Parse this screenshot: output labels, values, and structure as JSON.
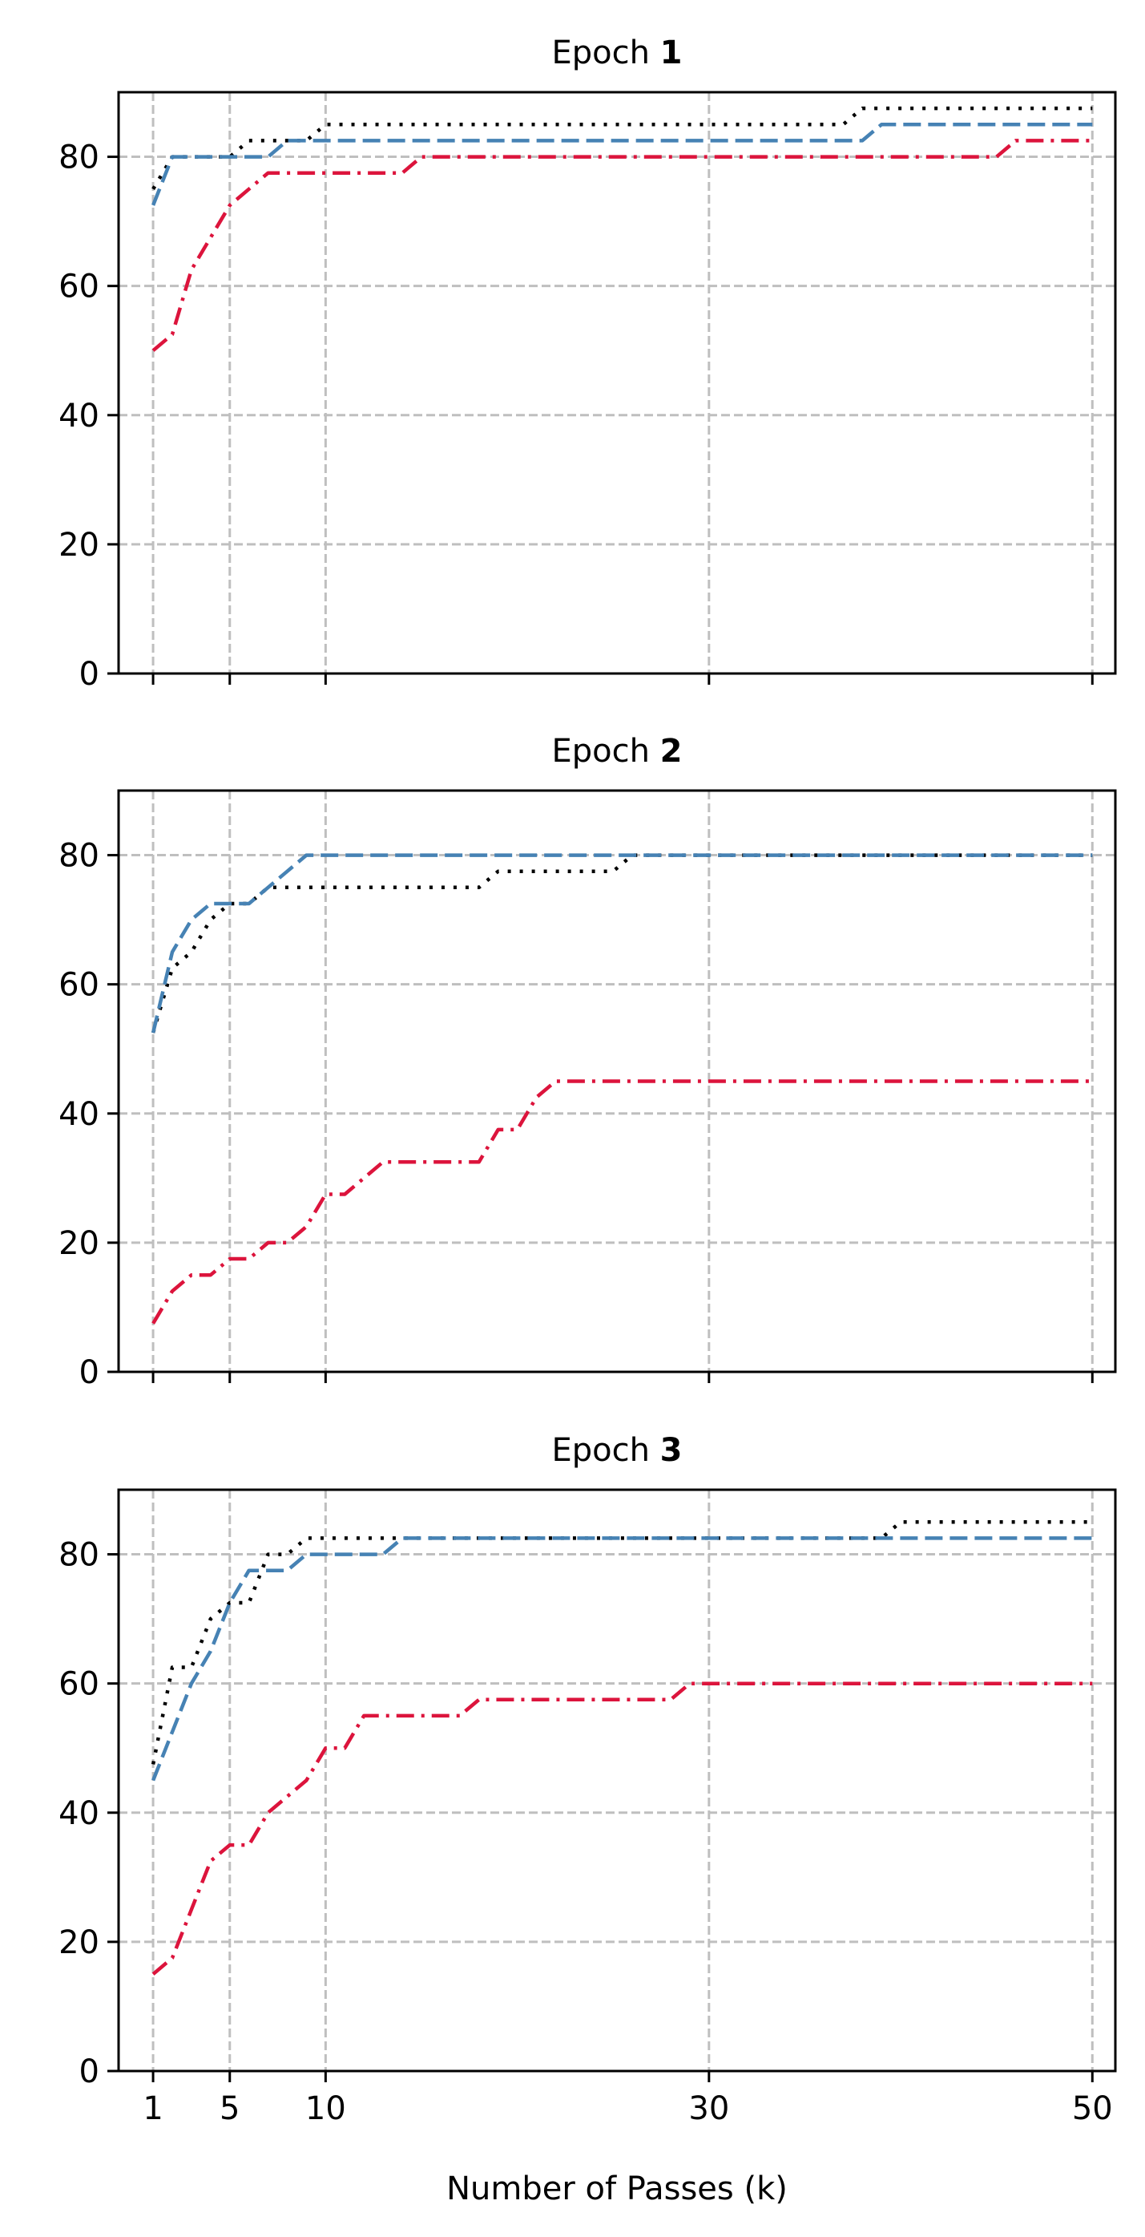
{
  "chart_data": {
    "type": "line",
    "xlabel": "Number of Passes (k)",
    "ylabel": "",
    "xlim": [
      -0.8,
      51.2
    ],
    "ylim": [
      0,
      90
    ],
    "xticks": [
      1,
      5,
      10,
      30,
      50
    ],
    "yticks": [
      0,
      20,
      40,
      60,
      80
    ],
    "grid": true,
    "colors": {
      "dotted": "#000000",
      "dashed": "#4682b4",
      "dashdot": "#dc143c",
      "grid": "#bfbfbf"
    },
    "panels": [
      {
        "title_prefix": "Epoch ",
        "title_number": "1",
        "series": [
          {
            "style": "dotted",
            "x": [
              1,
              2,
              3,
              5,
              6,
              8,
              9,
              10,
              20,
              30,
              36,
              37,
              38,
              50
            ],
            "y": [
              75,
              80,
              80,
              80,
              82.5,
              82.5,
              82.5,
              85,
              85,
              85,
              85,
              85,
              87.5,
              87.5
            ]
          },
          {
            "style": "dashed",
            "x": [
              1,
              2,
              3,
              5,
              6,
              7,
              8,
              9,
              10,
              20,
              30,
              38,
              39,
              50
            ],
            "y": [
              72.5,
              80,
              80,
              80,
              80,
              80,
              82.5,
              82.5,
              82.5,
              82.5,
              82.5,
              82.5,
              85,
              85
            ]
          },
          {
            "style": "dashdot",
            "x": [
              1,
              2,
              3,
              4,
              5,
              6,
              7,
              8,
              9,
              10,
              14,
              15,
              20,
              30,
              45,
              46,
              50
            ],
            "y": [
              50,
              52.5,
              62.5,
              67.5,
              72.5,
              75,
              77.5,
              77.5,
              77.5,
              77.5,
              77.5,
              80,
              80,
              80,
              80,
              82.5,
              82.5
            ]
          }
        ]
      },
      {
        "title_prefix": "Epoch ",
        "title_number": "2",
        "series": [
          {
            "style": "dotted",
            "x": [
              1,
              2,
              3,
              4,
              5,
              6,
              7,
              10,
              18,
              19,
              20,
              25,
              26,
              50
            ],
            "y": [
              52.5,
              62.5,
              65,
              70,
              72.5,
              72.5,
              75,
              75,
              75,
              77.5,
              77.5,
              77.5,
              80,
              80
            ]
          },
          {
            "style": "dashed",
            "x": [
              1,
              2,
              3,
              4,
              5,
              6,
              7,
              8,
              9,
              10,
              20,
              30,
              50
            ],
            "y": [
              52.5,
              65,
              70,
              72.5,
              72.5,
              72.5,
              75,
              77.5,
              80,
              80,
              80,
              80,
              80
            ]
          },
          {
            "style": "dashdot",
            "x": [
              1,
              2,
              3,
              4,
              5,
              6,
              7,
              8,
              9,
              10,
              11,
              12,
              13,
              18,
              19,
              20,
              21,
              22,
              23,
              30,
              50
            ],
            "y": [
              7.5,
              12.5,
              15,
              15,
              17.5,
              17.5,
              20,
              20,
              22.5,
              27.5,
              27.5,
              30,
              32.5,
              32.5,
              37.5,
              37.5,
              42.5,
              45,
              45,
              45,
              45
            ]
          }
        ]
      },
      {
        "title_prefix": "Epoch ",
        "title_number": "3",
        "series": [
          {
            "style": "dotted",
            "x": [
              1,
              2,
              3,
              4,
              5,
              6,
              7,
              8,
              9,
              10,
              20,
              30,
              39,
              40,
              50
            ],
            "y": [
              47.5,
              62.5,
              62.5,
              70,
              72.5,
              72.5,
              80,
              80,
              82.5,
              82.5,
              82.5,
              82.5,
              82.5,
              85,
              85
            ]
          },
          {
            "style": "dashed",
            "x": [
              1,
              2,
              3,
              4,
              5,
              6,
              7,
              8,
              9,
              10,
              13,
              14,
              20,
              30,
              50
            ],
            "y": [
              45,
              52.5,
              60,
              65,
              72.5,
              77.5,
              77.5,
              77.5,
              80,
              80,
              80,
              82.5,
              82.5,
              82.5,
              82.5
            ]
          },
          {
            "style": "dashdot",
            "x": [
              1,
              2,
              3,
              4,
              5,
              6,
              7,
              8,
              9,
              10,
              11,
              12,
              17,
              18,
              20,
              28,
              29,
              30,
              50
            ],
            "y": [
              15,
              17.5,
              25,
              32.5,
              35,
              35,
              40,
              42.5,
              45,
              50,
              50,
              55,
              55,
              57.5,
              57.5,
              57.5,
              60,
              60,
              60
            ]
          }
        ]
      }
    ]
  }
}
